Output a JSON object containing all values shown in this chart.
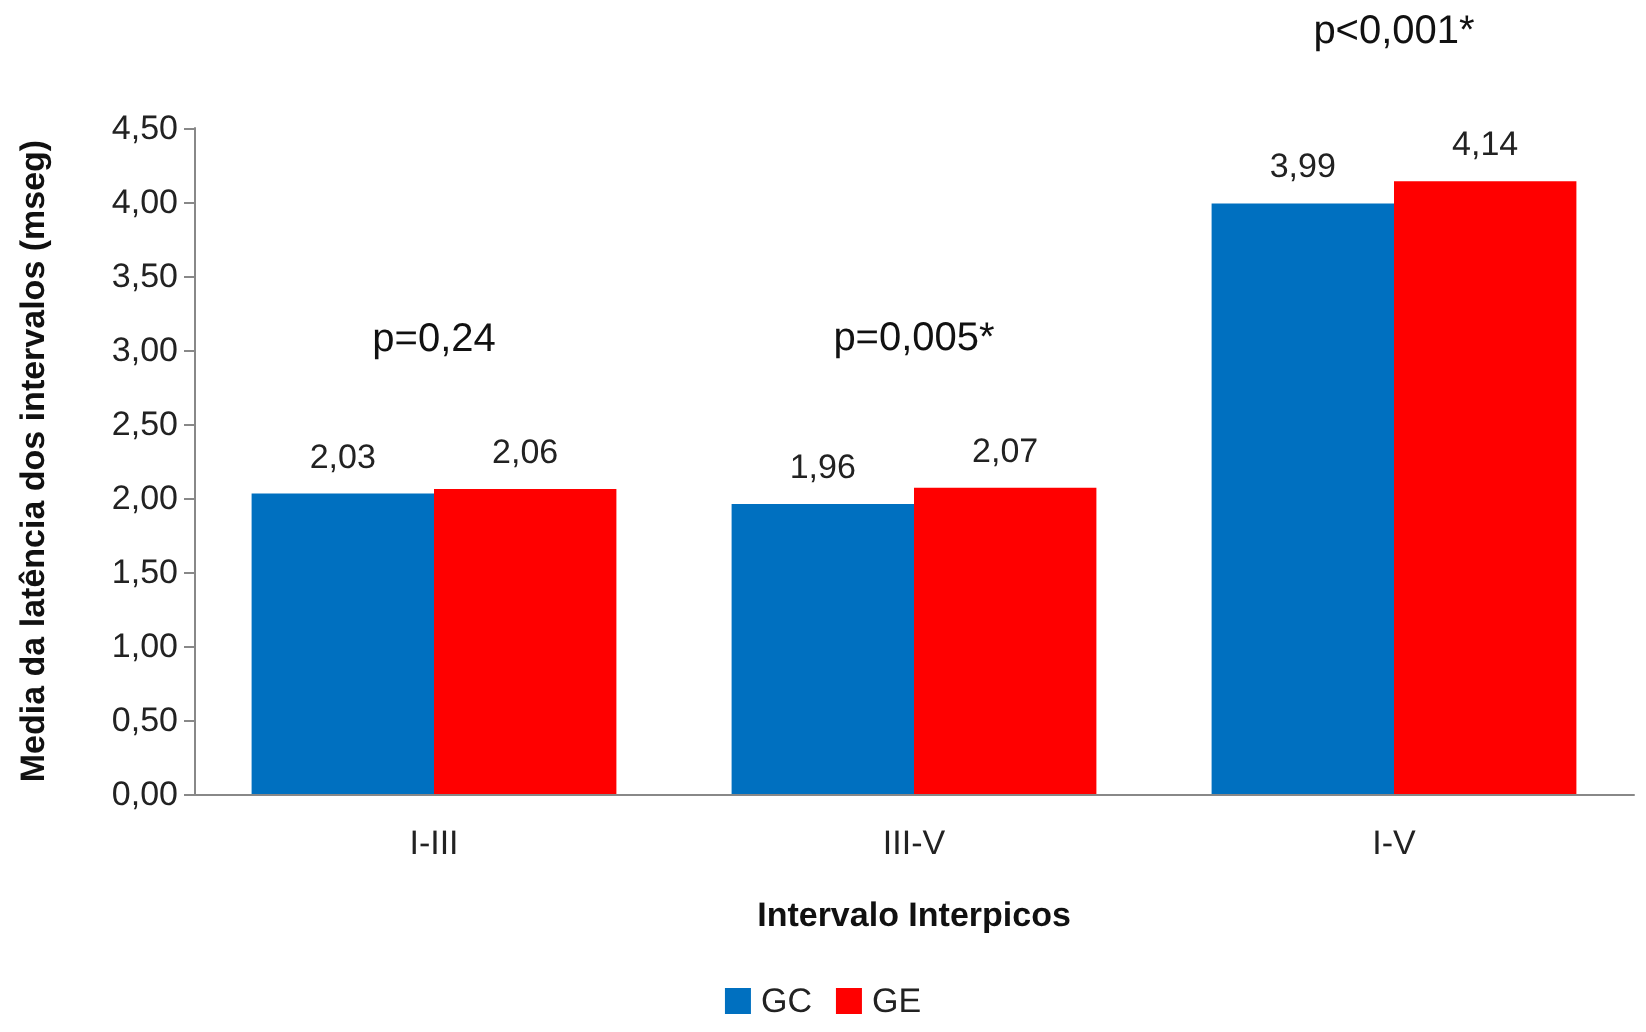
{
  "chart_data": {
    "type": "bar",
    "xlabel": "Intervalo Interpicos",
    "ylabel": "Media da latência dos intervalos (mseg)",
    "categories": [
      "I-III",
      "III-V",
      "I-V"
    ],
    "series": [
      {
        "name": "GC",
        "color": "#0070c0",
        "values": [
          2.03,
          1.96,
          3.99
        ],
        "value_labels": [
          "2,03",
          "1,96",
          "3,99"
        ]
      },
      {
        "name": "GE",
        "color": "#ff0000",
        "values": [
          2.06,
          2.07,
          4.14
        ],
        "value_labels": [
          "2,06",
          "2,07",
          "4,14"
        ]
      }
    ],
    "ylim": [
      0,
      4.5
    ],
    "yticks": [
      {
        "value": 0,
        "label": "0,00"
      },
      {
        "value": 0.5,
        "label": "0,50"
      },
      {
        "value": 1,
        "label": "1,00"
      },
      {
        "value": 1.5,
        "label": "1,50"
      },
      {
        "value": 2,
        "label": "2,00"
      },
      {
        "value": 2.5,
        "label": "2,50"
      },
      {
        "value": 3,
        "label": "3,00"
      },
      {
        "value": 3.5,
        "label": "3,50"
      },
      {
        "value": 4,
        "label": "4,00"
      },
      {
        "value": 4.5,
        "label": "4,50"
      }
    ],
    "annotations": [
      "p=0,24",
      "p=0,005*",
      "p<0,001*"
    ],
    "grid": false,
    "legend": "bottom"
  }
}
